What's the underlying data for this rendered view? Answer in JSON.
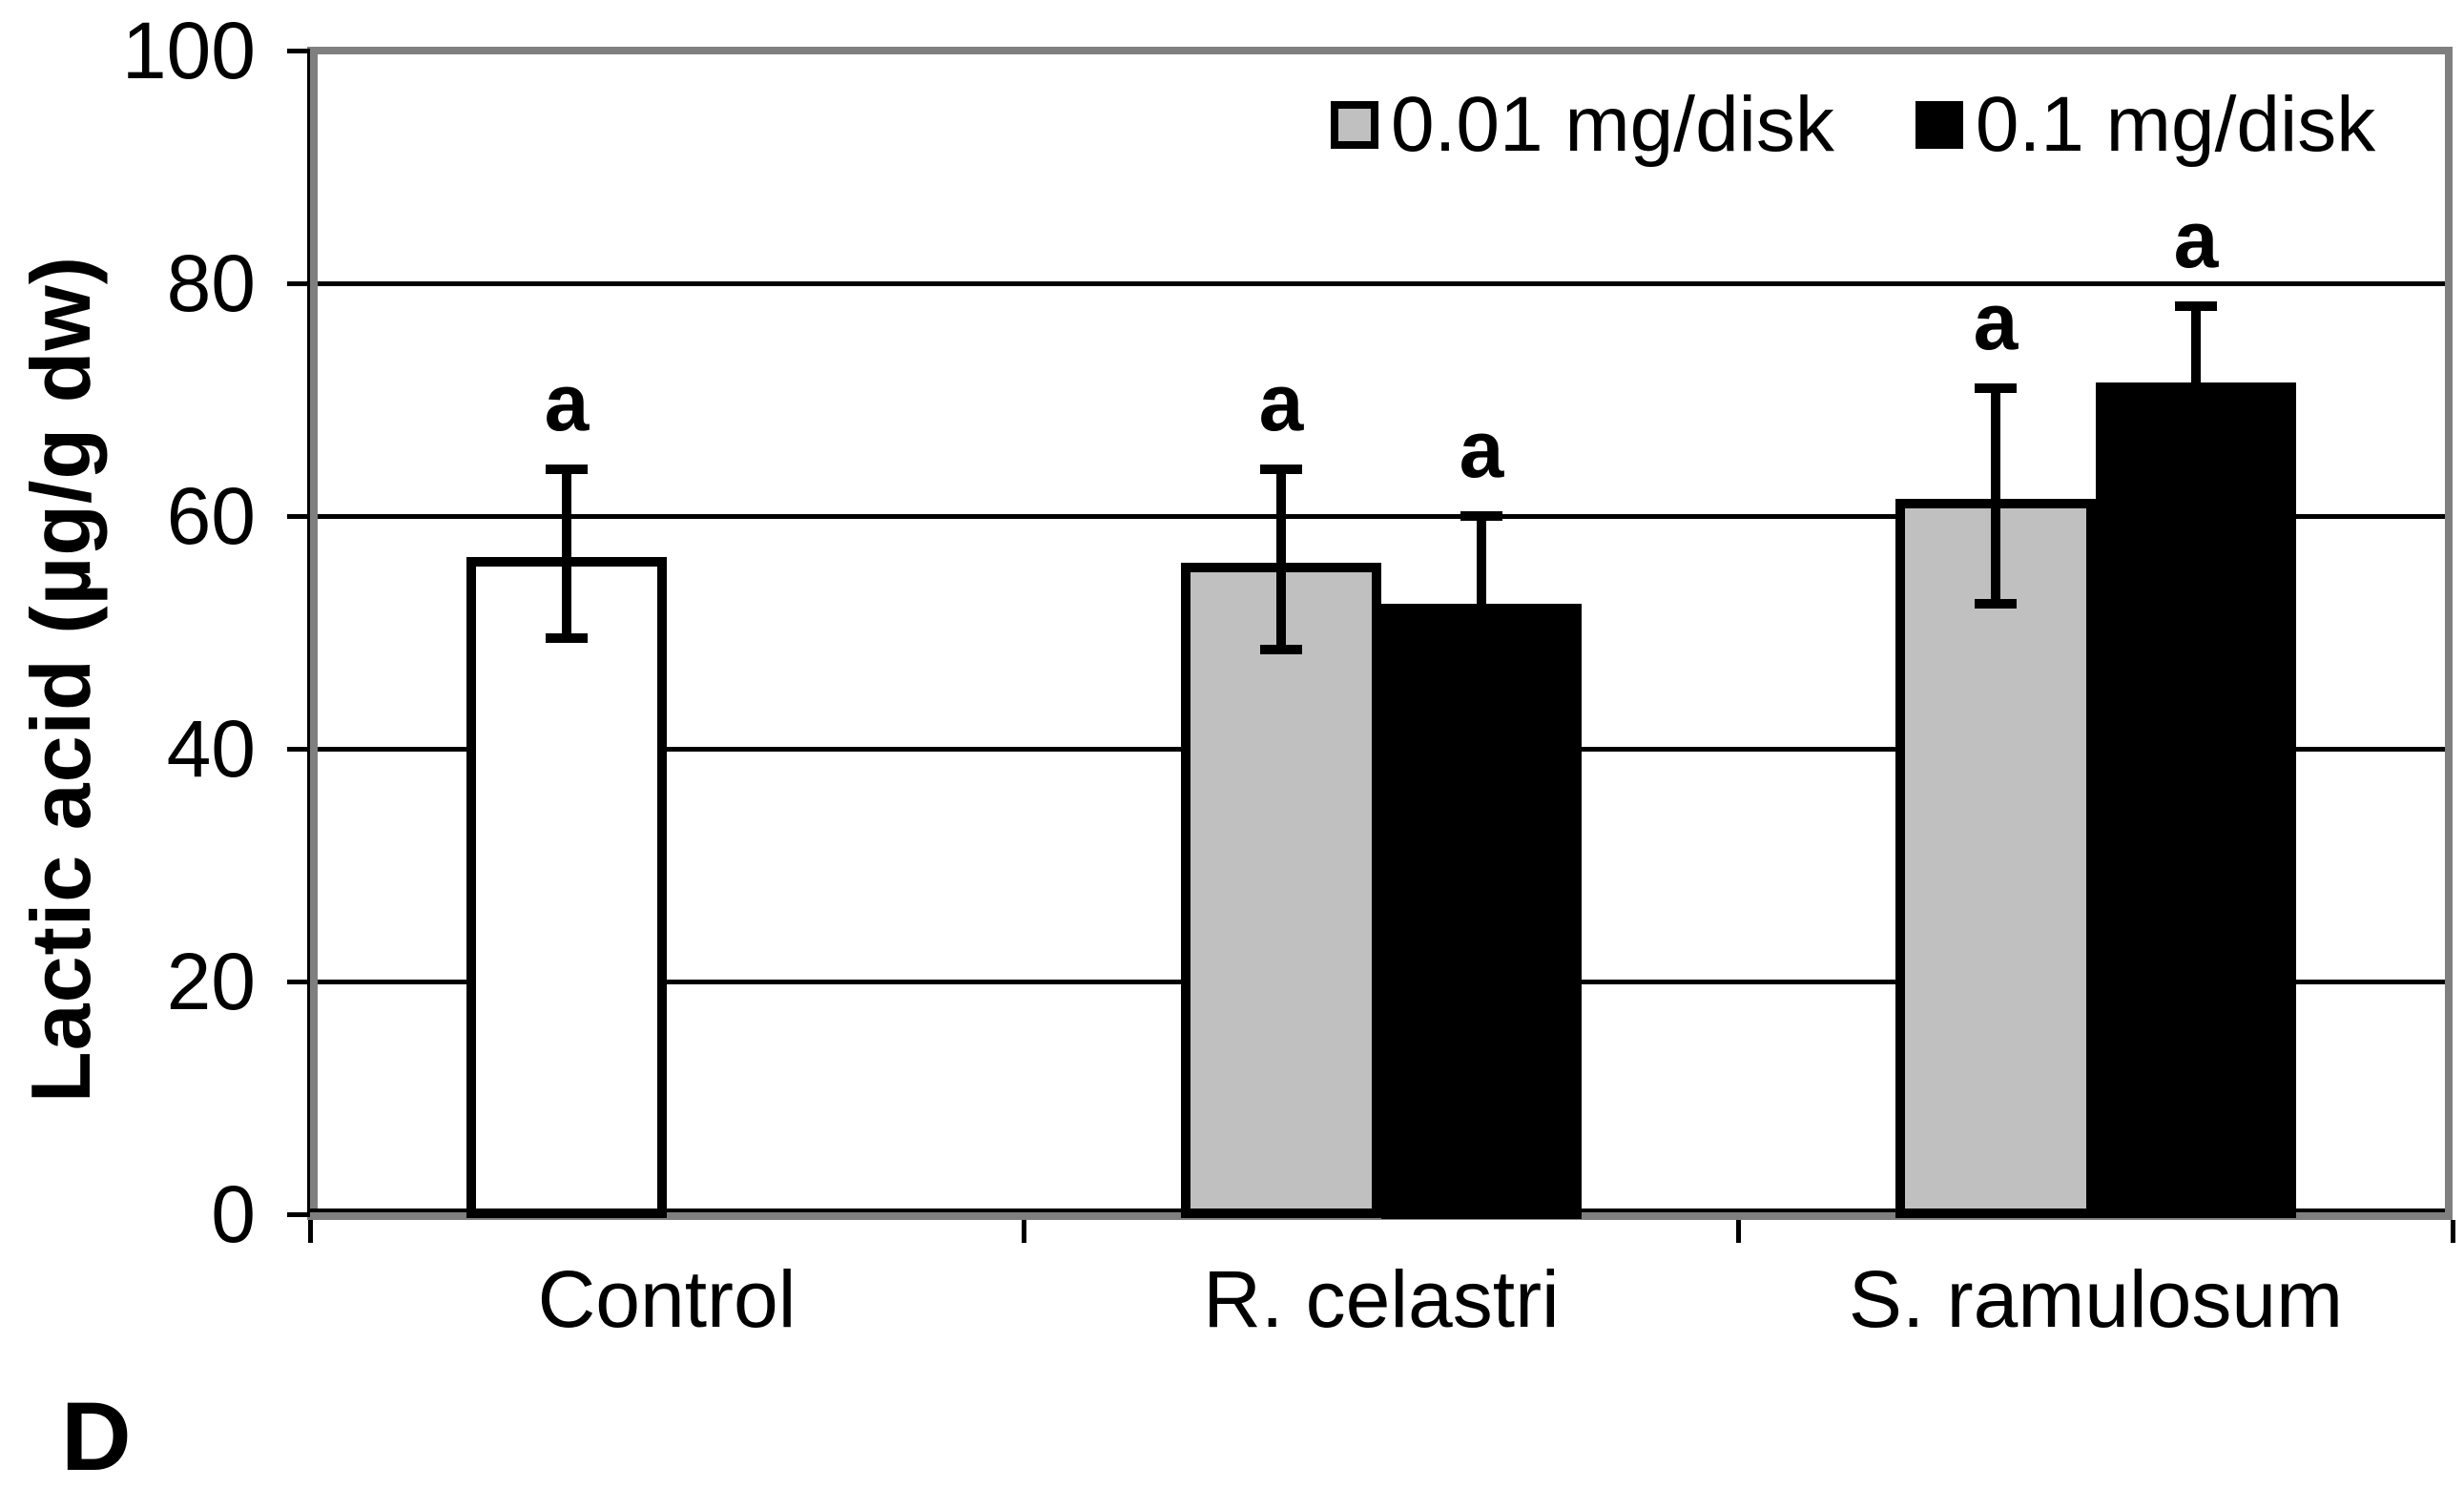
{
  "figure": {
    "panel_label": "D",
    "background": "#FFFFFF"
  },
  "chart_data": {
    "type": "bar",
    "title": "",
    "ylabel": "Lactic acid (µg/g dw)",
    "xlabel": "",
    "ylim": [
      0,
      100
    ],
    "yticks": [
      0,
      20,
      40,
      60,
      80,
      100
    ],
    "grid": true,
    "legend_position": "top-right-inside",
    "categories": [
      "Control",
      "R. celastri",
      "S. ramulosum"
    ],
    "series": [
      {
        "name": "0.01 mg/disk",
        "color": "#C0C0C0",
        "values": [
          56.5,
          56,
          61.5
        ]
      },
      {
        "name": "0.1 mg/disk",
        "color": "#000000",
        "values": [
          null,
          52.5,
          71.5
        ]
      }
    ],
    "bars": [
      {
        "category_index": 0,
        "category": "Control",
        "slot": 0,
        "series": "Control",
        "fill": "#FFFFFF",
        "value": 56.5,
        "err_top": 64,
        "err_bot": 49.5,
        "sig_label": "a"
      },
      {
        "category_index": 1,
        "category": "R. celastri",
        "slot": 0,
        "series": "0.01 mg/disk",
        "fill": "#C0C0C0",
        "value": 56,
        "err_top": 64,
        "err_bot": 48.5,
        "sig_label": "a"
      },
      {
        "category_index": 1,
        "category": "R. celastri",
        "slot": 1,
        "series": "0.1 mg/disk",
        "fill": "#000000",
        "value": 52.5,
        "err_top": 60,
        "err_bot": 45,
        "sig_label": "a"
      },
      {
        "category_index": 2,
        "category": "S. ramulosum",
        "slot": 0,
        "series": "0.01 mg/disk",
        "fill": "#C0C0C0",
        "value": 61.5,
        "err_top": 71,
        "err_bot": 52.5,
        "sig_label": "a"
      },
      {
        "category_index": 2,
        "category": "S. ramulosum",
        "slot": 1,
        "series": "0.1 mg/disk",
        "fill": "#000000",
        "value": 71.5,
        "err_top": 78,
        "err_bot": 64.5,
        "sig_label": "a"
      }
    ],
    "colors": {
      "plot_border": "#7F7F7F",
      "gridline": "#000000",
      "axis_line": "#000000",
      "error_bar": "#000000",
      "bar_border": "#000000"
    }
  }
}
